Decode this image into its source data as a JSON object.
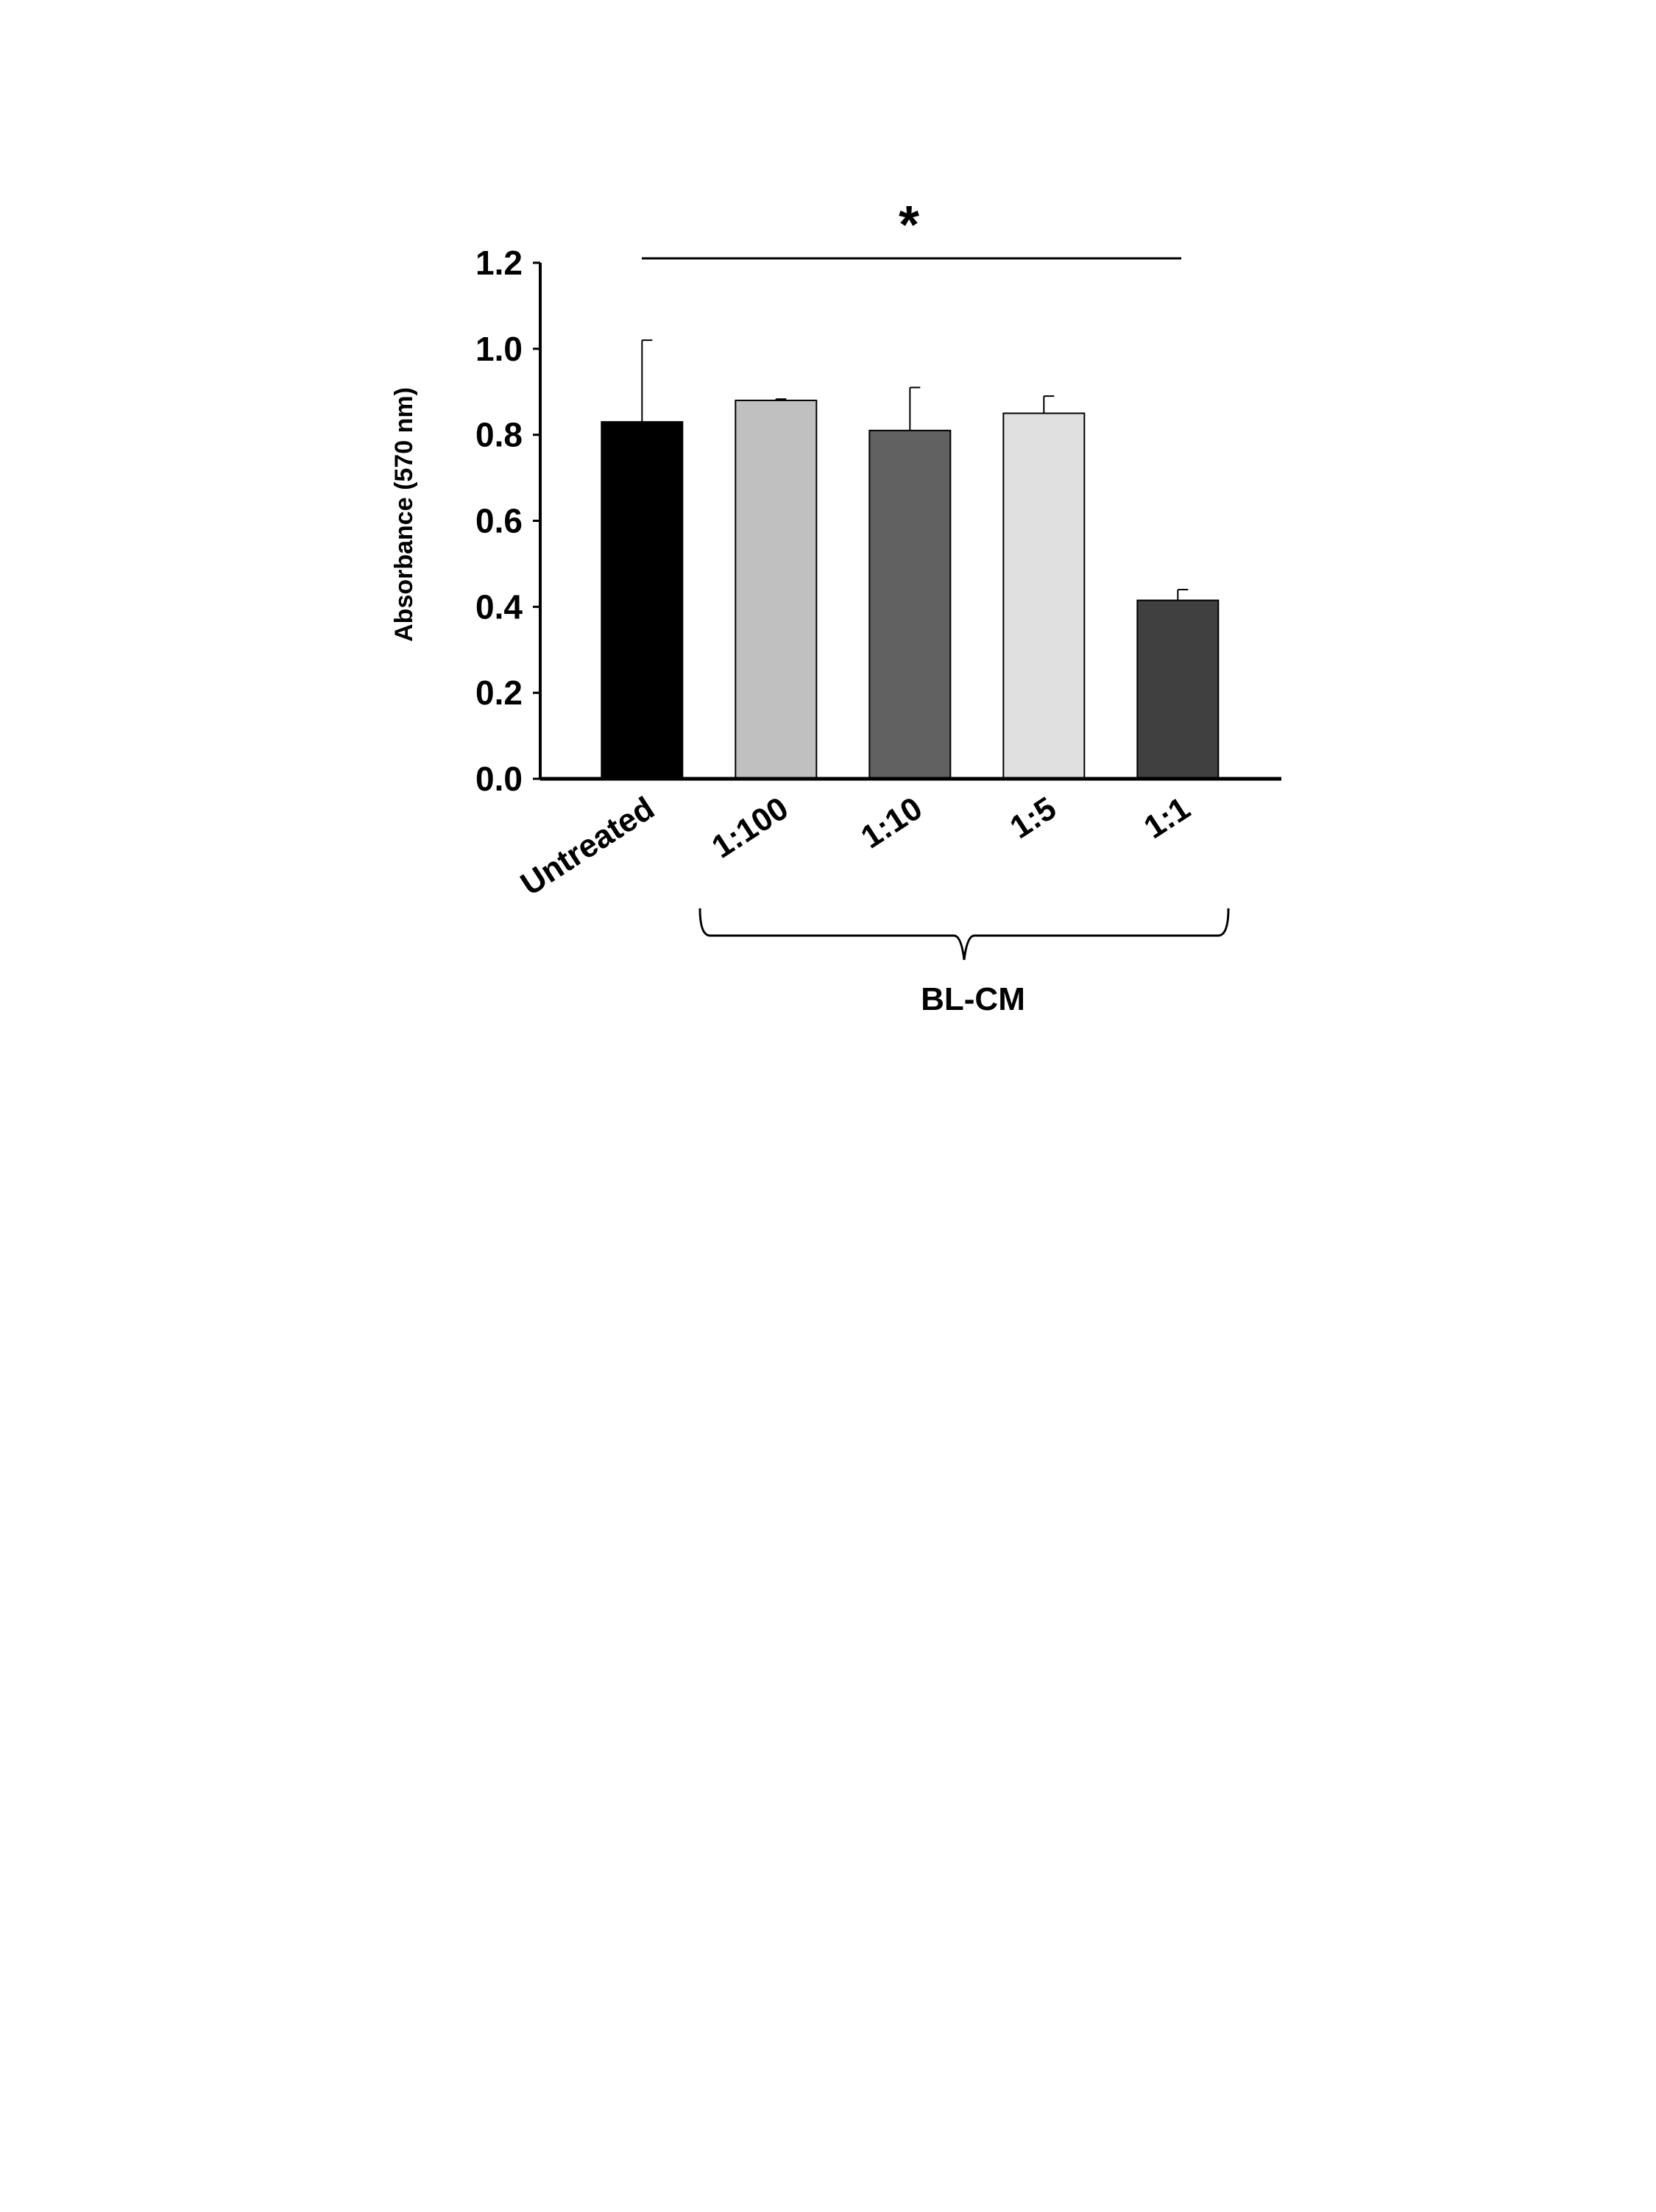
{
  "chart_data": {
    "type": "bar",
    "y_label": "Absorbance (570 nm)",
    "annotation": "*",
    "group_label": "BL-CM",
    "categories": [
      "Untreated",
      "1:100",
      "1:10",
      "1:5",
      "1:1"
    ],
    "values": [
      0.83,
      0.88,
      0.81,
      0.85,
      0.415
    ],
    "errors": [
      0.19,
      0.003,
      0.1,
      0.04,
      0.025
    ],
    "colors": [
      "#000000",
      "#c0c0c0",
      "#606060",
      "#e0e0e0",
      "#404040"
    ],
    "ylim": [
      0,
      1.2
    ],
    "yticks": [
      {
        "value": 0,
        "label": "0.0"
      },
      0.2,
      0.4,
      0.6,
      0.8,
      {
        "value": 1,
        "label": "1.0"
      },
      1.2
    ]
  }
}
